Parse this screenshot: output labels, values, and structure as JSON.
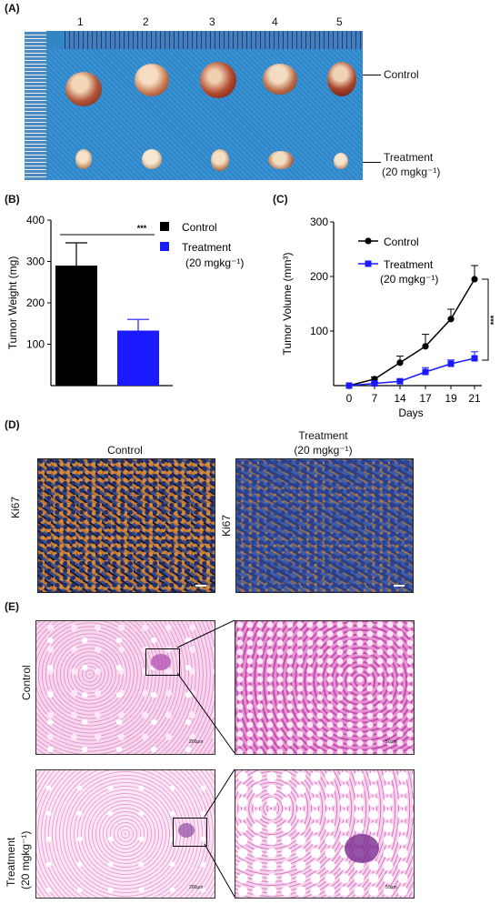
{
  "panels": {
    "a": {
      "label": "(A)",
      "columns": [
        "1",
        "2",
        "3",
        "4",
        "5"
      ],
      "row_control": "Control",
      "row_treatment": "Treatment",
      "row_treatment_dose": "(20 mgkg⁻¹)"
    },
    "b": {
      "label": "(B)"
    },
    "c": {
      "label": "(C)"
    },
    "d": {
      "label": "(D)",
      "left_title": "Control",
      "right_title": "Treatment",
      "right_title_dose": "(20 mgkg⁻¹)",
      "stain": "Ki67"
    },
    "e": {
      "label": "(E)",
      "row_control": "Control",
      "row_treatment": "Treatment",
      "row_treatment_dose": "(20 mgkg⁻¹)",
      "scale_low": "200μm",
      "scale_high": "50μm"
    }
  },
  "colors": {
    "control": "#000000",
    "treatment": "#1a1aff",
    "he_pink": "#e9a6d8",
    "ihc_brown": "#b86a2a",
    "ihc_blue": "#2f4f8f"
  },
  "chart_data": [
    {
      "type": "bar",
      "categories": [
        "Control",
        "Treatment (20 mgkg⁻¹)"
      ],
      "values": [
        290,
        133
      ],
      "errors": [
        55,
        27
      ],
      "ylabel": "Tumor Weight (mg)",
      "ylim": [
        0,
        400
      ],
      "yticks": [
        100,
        200,
        300,
        400
      ],
      "significance": "***",
      "legend": [
        {
          "name": "Control",
          "color": "#000000"
        },
        {
          "name": "Treatment",
          "dose": "(20 mgkg⁻¹)",
          "color": "#1a1aff"
        }
      ]
    },
    {
      "type": "line",
      "x": [
        0,
        7,
        14,
        17,
        19,
        21
      ],
      "xlabel": "Days",
      "ylabel": "Tumor Volume (mm³)",
      "ylim": [
        0,
        300
      ],
      "yticks": [
        100,
        200,
        300
      ],
      "significance": "***",
      "series": [
        {
          "name": "Control",
          "values": [
            0,
            12,
            42,
            72,
            122,
            195
          ],
          "errors": [
            0,
            4,
            12,
            22,
            18,
            25
          ],
          "color": "#000000",
          "marker": "circle"
        },
        {
          "name": "Treatment",
          "dose": "(20 mgkg⁻¹)",
          "values": [
            0,
            4,
            8,
            25,
            40,
            50
          ],
          "errors": [
            0,
            2,
            3,
            8,
            7,
            12
          ],
          "color": "#1a1aff",
          "marker": "square"
        }
      ]
    }
  ]
}
